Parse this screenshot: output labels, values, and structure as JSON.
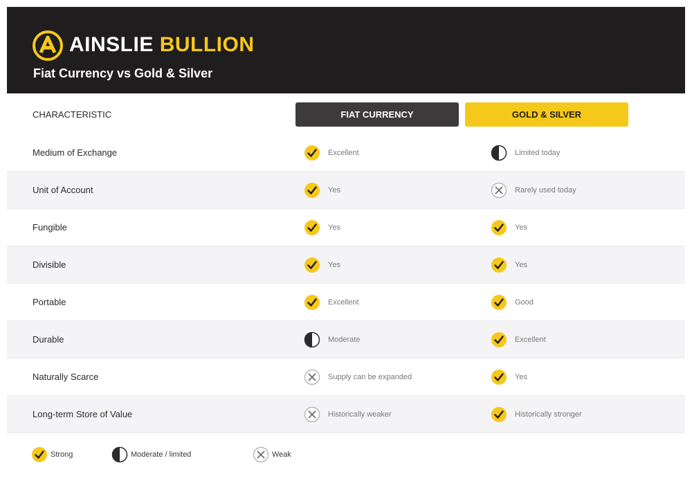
{
  "header": {
    "brand_first": "AINSLIE",
    "brand_second": "BULLION",
    "subtitle": "Fiat Currency vs Gold & Silver"
  },
  "table": {
    "columns": [
      "CHARACTERISTIC",
      "FIAT CURRENCY",
      "GOLD & SILVER"
    ],
    "rows": [
      {
        "label": "Medium of Exchange",
        "fiat": {
          "rating": "strong",
          "text": "Excellent"
        },
        "gold": {
          "rating": "moderate",
          "text": "Limited today"
        }
      },
      {
        "label": "Unit of Account",
        "fiat": {
          "rating": "strong",
          "text": "Yes"
        },
        "gold": {
          "rating": "weak",
          "text": "Rarely used today"
        }
      },
      {
        "label": "Fungible",
        "fiat": {
          "rating": "strong",
          "text": "Yes"
        },
        "gold": {
          "rating": "strong",
          "text": "Yes"
        }
      },
      {
        "label": "Divisible",
        "fiat": {
          "rating": "strong",
          "text": "Yes"
        },
        "gold": {
          "rating": "strong",
          "text": "Yes"
        }
      },
      {
        "label": "Portable",
        "fiat": {
          "rating": "strong",
          "text": "Excellent"
        },
        "gold": {
          "rating": "strong",
          "text": "Good"
        }
      },
      {
        "label": "Durable",
        "fiat": {
          "rating": "moderate",
          "text": "Moderate"
        },
        "gold": {
          "rating": "strong",
          "text": "Excellent"
        }
      },
      {
        "label": "Naturally Scarce",
        "fiat": {
          "rating": "weak",
          "text": "Supply can be expanded"
        },
        "gold": {
          "rating": "strong",
          "text": "Yes"
        }
      },
      {
        "label": "Long-term Store of Value",
        "fiat": {
          "rating": "weak",
          "text": "Historically weaker"
        },
        "gold": {
          "rating": "strong",
          "text": "Historically stronger"
        }
      }
    ]
  },
  "legend": [
    {
      "rating": "strong",
      "label": "Strong"
    },
    {
      "rating": "moderate",
      "label": "Moderate / limited"
    },
    {
      "rating": "weak",
      "label": "Weak"
    }
  ]
}
